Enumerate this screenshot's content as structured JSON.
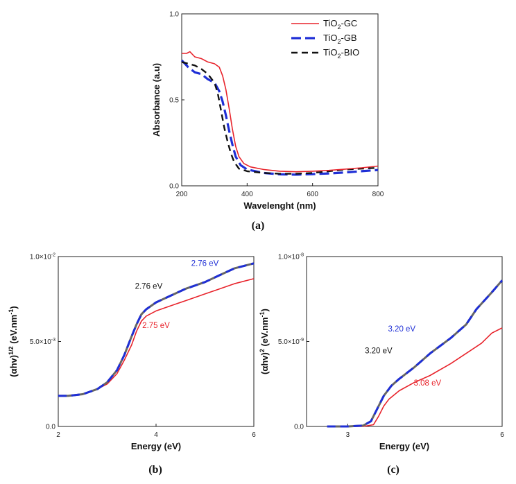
{
  "panels": {
    "a": "(a)",
    "b": "(b)",
    "c": "(c)"
  },
  "colors": {
    "gc": "#e8232b",
    "gb": "#1f2fd6",
    "bio": "#111111"
  },
  "chart_data": [
    {
      "type": "line",
      "xlabel": "Wavelenght (nm)",
      "ylabel": "Absorbance (a.u)",
      "xlim": [
        200,
        800
      ],
      "ylim": [
        0,
        1
      ],
      "xticks": [
        200,
        400,
        600,
        800
      ],
      "xtick_labels": [
        "200",
        "400",
        "600",
        "800"
      ],
      "yticks": [
        0,
        0.5,
        1
      ],
      "ytick_labels": [
        "0.0",
        "0.5",
        "1.0"
      ],
      "legend_position": "top-right",
      "series": [
        {
          "key": "gc",
          "name_main": "TiO",
          "name_sub": "2",
          "name_rest": "-GC",
          "x": [
            200,
            215,
            225,
            240,
            260,
            280,
            300,
            315,
            325,
            335,
            345,
            355,
            365,
            375,
            390,
            410,
            450,
            500,
            550,
            600,
            650,
            700,
            750,
            800
          ],
          "y": [
            0.77,
            0.77,
            0.78,
            0.75,
            0.74,
            0.72,
            0.71,
            0.69,
            0.64,
            0.56,
            0.45,
            0.33,
            0.23,
            0.17,
            0.13,
            0.11,
            0.095,
            0.085,
            0.082,
            0.085,
            0.09,
            0.097,
            0.105,
            0.115
          ]
        },
        {
          "key": "gb",
          "name_main": "TiO",
          "name_sub": "2",
          "name_rest": "-GB",
          "x": [
            200,
            220,
            240,
            260,
            280,
            300,
            315,
            325,
            335,
            345,
            355,
            365,
            380,
            400,
            450,
            500,
            550,
            600,
            650,
            700,
            750,
            800
          ],
          "y": [
            0.73,
            0.69,
            0.66,
            0.65,
            0.62,
            0.6,
            0.55,
            0.49,
            0.41,
            0.32,
            0.24,
            0.17,
            0.12,
            0.095,
            0.075,
            0.067,
            0.065,
            0.068,
            0.072,
            0.078,
            0.085,
            0.092
          ]
        },
        {
          "key": "bio",
          "name_main": "TiO",
          "name_sub": "2",
          "name_rest": "-BIO",
          "x": [
            200,
            220,
            240,
            260,
            280,
            300,
            310,
            320,
            330,
            340,
            350,
            360,
            375,
            400,
            450,
            500,
            550,
            600,
            650,
            700,
            750,
            800
          ],
          "y": [
            0.72,
            0.71,
            0.7,
            0.68,
            0.65,
            0.6,
            0.54,
            0.44,
            0.34,
            0.26,
            0.19,
            0.14,
            0.1,
            0.085,
            0.075,
            0.07,
            0.07,
            0.075,
            0.085,
            0.095,
            0.1,
            0.105
          ]
        }
      ]
    },
    {
      "type": "line",
      "xlabel": "Energy (eV)",
      "ylabel_main": "(αhv)",
      "ylabel_sup": "1/2",
      "ylabel_tail": " (eV.nm",
      "ylabel_sup2": "-1",
      "ylabel_end": ")",
      "xlim": [
        2,
        6
      ],
      "ylim": [
        0,
        0.01
      ],
      "xticks": [
        2,
        4,
        6
      ],
      "xtick_labels": [
        "2",
        "4",
        "6"
      ],
      "yticks": [
        0,
        0.005,
        0.01
      ],
      "ytick_labels": [
        "0.0",
        "5.0×10-3",
        "1.0×10-2"
      ],
      "ytick_base": [
        "0.0",
        "5.0×10",
        "1.0×10"
      ],
      "ytick_exp": [
        "",
        "-3",
        "-2"
      ],
      "annotations": [
        {
          "text": "2.76 eV",
          "color": "#1f2fd6",
          "x": 5.0,
          "y": 0.00945
        },
        {
          "text": "2.76 eV",
          "color": "#111111",
          "x": 3.85,
          "y": 0.0081
        },
        {
          "text": "2.75 eV",
          "color": "#e8232b",
          "x": 4.0,
          "y": 0.0058
        }
      ],
      "series": [
        {
          "key": "gc",
          "x": [
            2,
            2.2,
            2.5,
            2.8,
            3.0,
            3.2,
            3.35,
            3.5,
            3.6,
            3.7,
            3.8,
            4.0,
            4.3,
            4.6,
            5.0,
            5.3,
            5.6,
            6.0
          ],
          "y": [
            0.0018,
            0.0018,
            0.0019,
            0.0022,
            0.0025,
            0.0031,
            0.0039,
            0.0048,
            0.0056,
            0.0062,
            0.0065,
            0.0068,
            0.0071,
            0.0074,
            0.0078,
            0.0081,
            0.0084,
            0.0087
          ]
        },
        {
          "key": "gb",
          "x": [
            2,
            2.2,
            2.5,
            2.8,
            3.0,
            3.2,
            3.35,
            3.5,
            3.6,
            3.7,
            3.8,
            4.0,
            4.3,
            4.6,
            5.0,
            5.3,
            5.6,
            6.0
          ],
          "y": [
            0.0018,
            0.0018,
            0.0019,
            0.0022,
            0.0026,
            0.0033,
            0.0042,
            0.0053,
            0.006,
            0.0066,
            0.0069,
            0.0073,
            0.0077,
            0.0081,
            0.0085,
            0.0089,
            0.0093,
            0.0096
          ]
        },
        {
          "key": "bio",
          "x": [
            2,
            2.2,
            2.5,
            2.8,
            3.0,
            3.2,
            3.35,
            3.5,
            3.6,
            3.7,
            3.8,
            4.0,
            4.3,
            4.6,
            5.0,
            5.3,
            5.6,
            6.0
          ],
          "y": [
            0.0018,
            0.0018,
            0.0019,
            0.0022,
            0.0026,
            0.0033,
            0.0042,
            0.0053,
            0.006,
            0.0066,
            0.0069,
            0.0073,
            0.0077,
            0.0081,
            0.0085,
            0.0089,
            0.0093,
            0.0096
          ]
        }
      ]
    },
    {
      "type": "line",
      "xlabel": "Energy (eV)",
      "ylabel_main": "(αhv)",
      "ylabel_sup": "2",
      "ylabel_tail": " (eV.nm",
      "ylabel_sup2": "-1",
      "ylabel_end": ")",
      "xlim": [
        2.2,
        6
      ],
      "ylim": [
        0,
        1e-08
      ],
      "xticks": [
        3,
        6
      ],
      "xtick_labels": [
        "3",
        "6"
      ],
      "yticks": [
        0,
        5e-09,
        1e-08
      ],
      "ytick_labels": [
        "0.0",
        "5.0×10-9",
        "1.0×10-8"
      ],
      "ytick_base": [
        "0.0",
        "5.0×10",
        "1.0×10"
      ],
      "ytick_exp": [
        "",
        "-9",
        "-8"
      ],
      "annotations": [
        {
          "text": "3.20 eV",
          "color": "#1f2fd6",
          "x": 4.05,
          "y": 5.6e-09
        },
        {
          "text": "3.20 eV",
          "color": "#111111",
          "x": 3.6,
          "y": 4.3e-09
        },
        {
          "text": "3.08 eV",
          "color": "#e8232b",
          "x": 4.55,
          "y": 2.4e-09
        }
      ],
      "series": [
        {
          "key": "gc",
          "x": [
            2.6,
            3.0,
            3.3,
            3.5,
            3.6,
            3.7,
            3.8,
            4.0,
            4.3,
            4.6,
            5.0,
            5.3,
            5.6,
            5.8,
            6.0
          ],
          "y": [
            0,
            0,
            0,
            1e-10,
            6e-10,
            1.2e-09,
            1.6e-09,
            2.1e-09,
            2.6e-09,
            3e-09,
            3.7e-09,
            4.3e-09,
            4.9e-09,
            5.5e-09,
            5.8e-09
          ]
        },
        {
          "key": "gb",
          "x": [
            2.6,
            3.0,
            3.3,
            3.45,
            3.55,
            3.7,
            3.85,
            4.0,
            4.3,
            4.6,
            5.0,
            5.3,
            5.5,
            5.8,
            6.0
          ],
          "y": [
            0,
            0,
            5e-11,
            3e-10,
            9e-10,
            1.8e-09,
            2.4e-09,
            2.8e-09,
            3.5e-09,
            4.3e-09,
            5.2e-09,
            6e-09,
            6.9e-09,
            7.9e-09,
            8.6e-09
          ]
        },
        {
          "key": "bio",
          "x": [
            2.6,
            3.0,
            3.3,
            3.45,
            3.55,
            3.7,
            3.85,
            4.0,
            4.3,
            4.6,
            5.0,
            5.3,
            5.5,
            5.8,
            6.0
          ],
          "y": [
            0,
            0,
            5e-11,
            3e-10,
            9e-10,
            1.8e-09,
            2.4e-09,
            2.8e-09,
            3.5e-09,
            4.3e-09,
            5.2e-09,
            6e-09,
            6.9e-09,
            7.9e-09,
            8.6e-09
          ]
        }
      ]
    }
  ]
}
